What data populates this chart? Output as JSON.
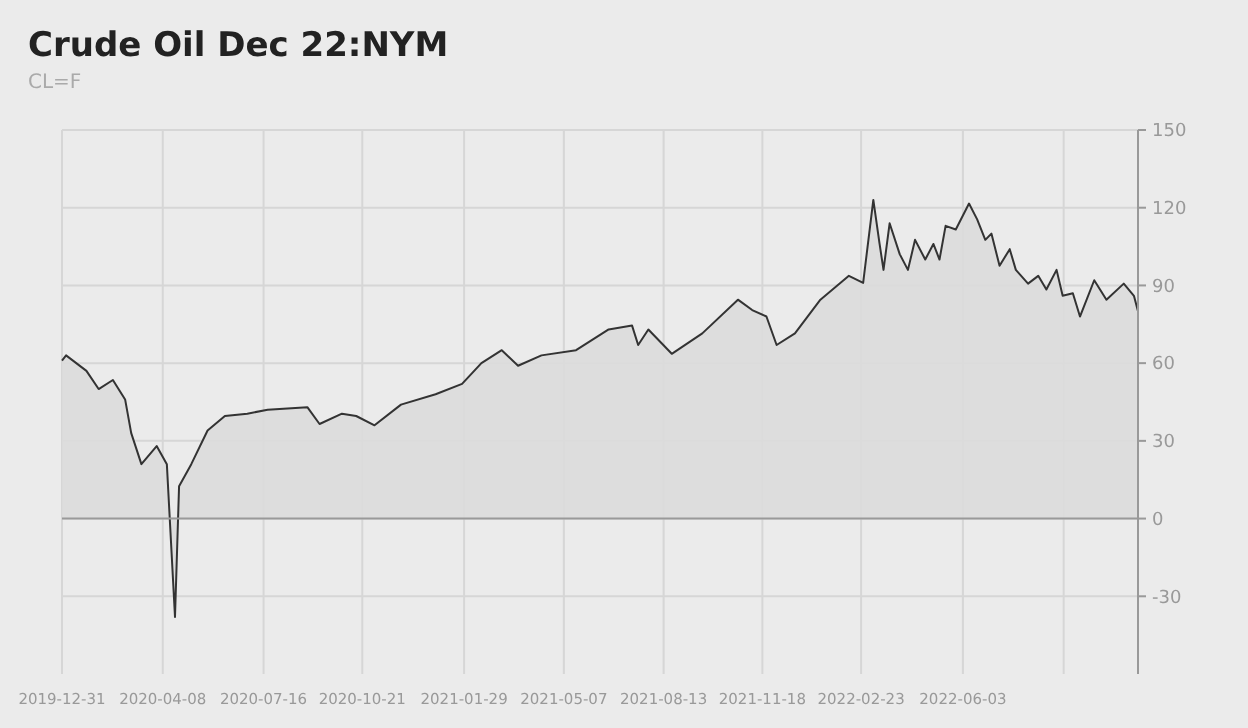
{
  "chart_data": {
    "type": "area",
    "title": "Crude Oil Dec 22:NYM",
    "subtitle": "CL=F",
    "x": [
      "2019-12-31",
      "2020-01-04",
      "2020-01-24",
      "2020-02-05",
      "2020-02-19",
      "2020-03-02",
      "2020-03-08",
      "2020-03-18",
      "2020-04-02",
      "2020-04-12",
      "2020-04-20",
      "2020-04-24",
      "2020-05-06",
      "2020-05-22",
      "2020-06-08",
      "2020-06-30",
      "2020-07-20",
      "2020-08-28",
      "2020-09-09",
      "2020-10-01",
      "2020-10-15",
      "2020-11-02",
      "2020-11-28",
      "2021-01-01",
      "2021-01-27",
      "2021-02-15",
      "2021-03-07",
      "2021-03-23",
      "2021-04-15",
      "2021-05-19",
      "2021-06-20",
      "2021-07-13",
      "2021-07-19",
      "2021-07-29",
      "2021-08-21",
      "2021-09-20",
      "2021-10-25",
      "2021-11-08",
      "2021-11-22",
      "2021-12-02",
      "2021-12-20",
      "2022-01-14",
      "2022-02-11",
      "2022-02-25",
      "2022-03-07",
      "2022-03-13",
      "2022-03-17",
      "2022-03-23",
      "2022-04-02",
      "2022-04-10",
      "2022-04-17",
      "2022-04-27",
      "2022-05-05",
      "2022-05-11",
      "2022-05-17",
      "2022-05-27",
      "2022-06-09",
      "2022-06-17",
      "2022-06-25",
      "2022-07-01",
      "2022-07-09",
      "2022-07-19",
      "2022-07-25",
      "2022-08-06",
      "2022-08-16",
      "2022-08-24",
      "2022-09-03",
      "2022-09-09",
      "2022-09-19",
      "2022-09-26",
      "2022-10-10",
      "2022-10-22",
      "2022-11-08",
      "2022-11-18",
      "2022-11-22"
    ],
    "series": [
      {
        "color": "#333333",
        "values": [
          61,
          63,
          57,
          50,
          53.5,
          46,
          33,
          21,
          28,
          21,
          -38,
          12.5,
          21,
          34,
          39.6,
          40.5,
          42,
          43,
          36.5,
          40.5,
          39.6,
          36,
          44,
          48,
          52,
          60,
          65,
          59,
          63,
          65,
          73,
          74.5,
          67,
          73,
          63.6,
          71.5,
          84.5,
          80.5,
          78,
          67,
          71.5,
          84.5,
          93.7,
          91,
          123,
          106.4,
          96,
          114,
          102,
          96,
          107.6,
          100,
          106,
          100,
          113,
          111.6,
          121.6,
          115.5,
          107.6,
          110,
          97.6,
          104,
          96,
          90.7,
          93.7,
          88.4,
          96,
          86,
          87,
          78,
          92,
          84.5,
          90.7,
          86,
          80
        ]
      }
    ],
    "xlim": [
      "2019-12-31",
      "2022-11-22"
    ],
    "xticks": [
      {
        "value": "2019-12-31",
        "label": "2019-12-31"
      },
      {
        "value": "2020-04-08",
        "label": "2020-04-08"
      },
      {
        "value": "2020-07-16",
        "label": "2020-07-16"
      },
      {
        "value": "2020-10-21",
        "label": "2020-10-21"
      },
      {
        "value": "2021-01-29",
        "label": "2021-01-29"
      },
      {
        "value": "2021-05-07",
        "label": "2021-05-07"
      },
      {
        "value": "2021-08-13",
        "label": "2021-08-13"
      },
      {
        "value": "2021-11-18",
        "label": "2021-11-18"
      },
      {
        "value": "2022-02-23",
        "label": "2022-02-23"
      },
      {
        "value": "2022-06-03",
        "label": "2022-06-03"
      },
      {
        "value": "2022-09-10",
        "label": null
      }
    ],
    "ylim": [
      -60,
      150
    ],
    "yticks": [
      -30,
      0,
      30,
      60,
      90,
      120,
      150
    ],
    "grid": true
  }
}
